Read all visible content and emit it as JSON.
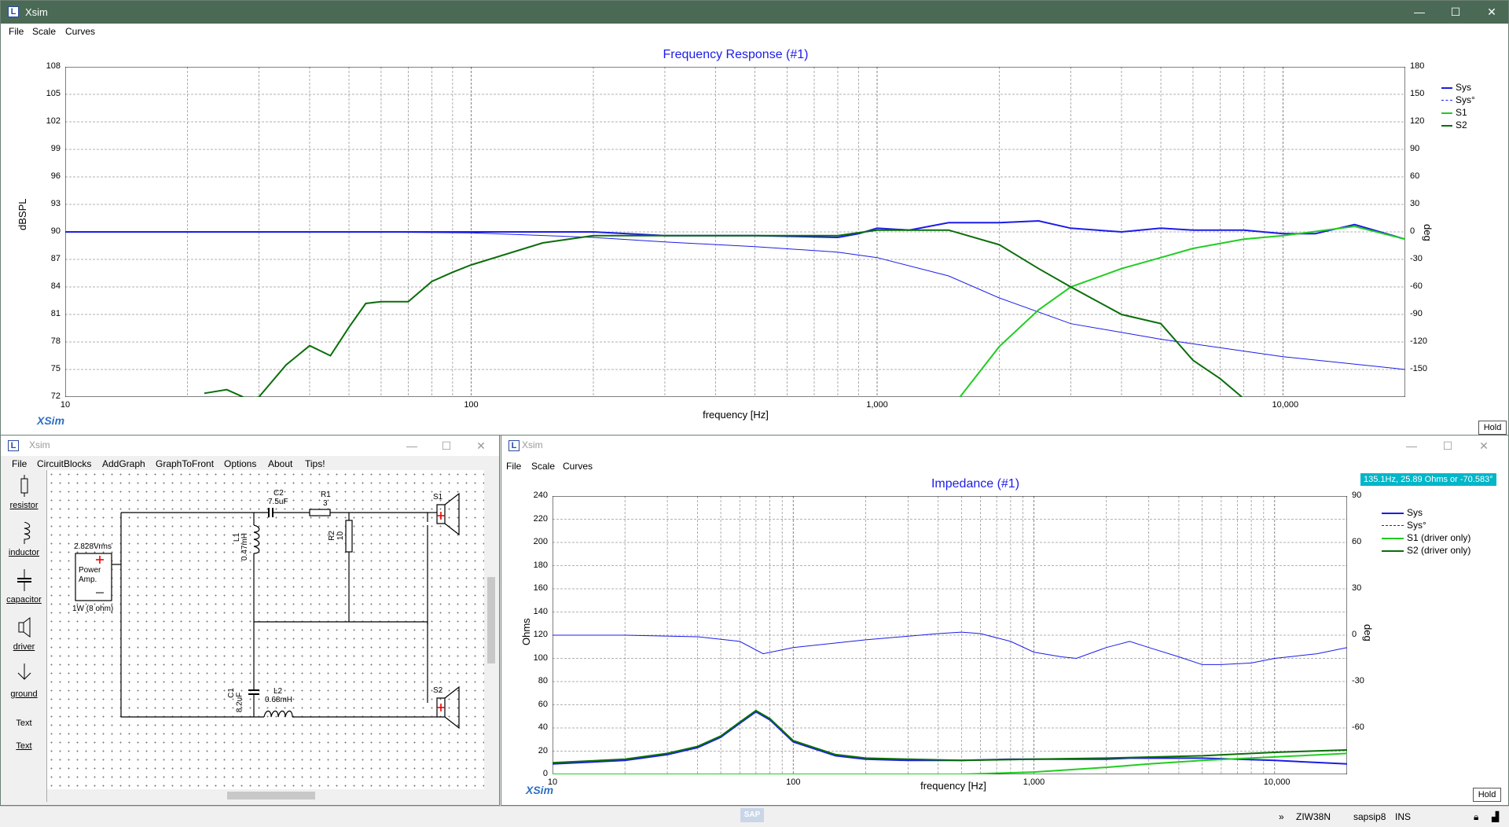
{
  "main_window": {
    "title": "Xsim",
    "controls": {
      "minimize": "—",
      "maximize": "☐",
      "close": "✕"
    },
    "menu": [
      "File",
      "Scale",
      "Curves"
    ]
  },
  "circuit_window": {
    "title": "Xsim",
    "menu": [
      "File",
      "CircuitBlocks",
      "AddGraph",
      "GraphToFront",
      "Options",
      "About",
      "Tips!"
    ],
    "palette": [
      "resistor",
      "inductor",
      "capacitor",
      "driver",
      "ground",
      "Text",
      "Text"
    ],
    "components": {
      "source_voltage": "2.828Vrms",
      "amp_label": "Power Amp.",
      "amp_rating": "1W (8 ohm)",
      "c2_name": "C2",
      "c2_value": "7.5uF",
      "r1_name": "R1",
      "r1_value": "3",
      "r2_name": "R2",
      "r2_value": "10",
      "l1_name": "L1",
      "l1_value": "0.47mH",
      "c1_name": "C1",
      "c1_value": "8.2uF",
      "l2_name": "L2",
      "l2_value": "0.68mH",
      "s1_name": "S1",
      "s2_name": "S2"
    }
  },
  "impedance_window": {
    "title": "Xsim",
    "menu": [
      "File",
      "Scale",
      "Curves"
    ],
    "cursor_readout": "135.1Hz, 25.89 Ohms or -70.583°"
  },
  "logo_text": "XSim",
  "hold_label": "Hold",
  "colors": {
    "sys": "#1c1ce8",
    "s1": "#22cc22",
    "s2": "#0a6e0a",
    "titlebar": "#4a6a56"
  },
  "statusbar": {
    "chevron": "»",
    "system": "ZIW38N",
    "user": "sapsip8",
    "mode": "INS"
  },
  "chart_data": [
    {
      "type": "line",
      "title": "Frequency Response (#1)",
      "xlabel": "frequency [Hz]",
      "ylabel": "dBSPL",
      "y2label": "deg",
      "xscale": "log",
      "xlim": [
        10,
        20000
      ],
      "ylim": [
        72,
        108
      ],
      "y2lim": [
        -180,
        180
      ],
      "x_ticks": [
        "10",
        "100",
        "1,000",
        "10,000"
      ],
      "y_ticks": [
        "108",
        "105",
        "102",
        "99",
        "96",
        "93",
        "90",
        "87",
        "84",
        "81",
        "78",
        "75",
        "72"
      ],
      "y2_ticks": [
        "180",
        "150",
        "120",
        "90",
        "60",
        "30",
        "0",
        "-30",
        "-60",
        "-90",
        "-120",
        "-150"
      ],
      "grid": true,
      "legend": "right",
      "legend_entries": [
        "Sys",
        "Sys°",
        "S1",
        "S2"
      ],
      "series": [
        {
          "name": "Sys",
          "x": [
            10,
            50,
            100,
            200,
            300,
            500,
            800,
            900,
            1000,
            1200,
            1500,
            2000,
            2500,
            3000,
            4000,
            5000,
            6000,
            8000,
            10000,
            12000,
            15000,
            20000
          ],
          "y": [
            90,
            90,
            90,
            90,
            89.6,
            89.6,
            89.4,
            89.8,
            90.4,
            90.2,
            91,
            91,
            91.2,
            90.4,
            90,
            90.4,
            90.2,
            90.2,
            89.8,
            89.8,
            90.8,
            89.2
          ]
        },
        {
          "name": "Sys°",
          "axis": "right",
          "x": [
            10,
            50,
            100,
            200,
            300,
            500,
            800,
            1000,
            1500,
            2000,
            3000,
            5000,
            10000,
            20000
          ],
          "y": [
            0,
            0,
            -1,
            -6,
            -11,
            -16,
            -22,
            -28,
            -48,
            -72,
            -100,
            -117,
            -136,
            -150
          ]
        },
        {
          "name": "S1",
          "x": [
            1600,
            2000,
            2500,
            3000,
            4000,
            5000,
            6000,
            8000,
            10000,
            15000,
            20000
          ],
          "y": [
            72,
            77.5,
            81.5,
            84,
            86,
            87.2,
            88.2,
            89.2,
            89.6,
            90.6,
            89.2
          ]
        },
        {
          "name": "S2",
          "x": [
            22,
            25,
            28,
            30,
            35,
            40,
            45,
            50,
            55,
            60,
            70,
            80,
            90,
            100,
            150,
            200,
            300,
            500,
            800,
            1000,
            1500,
            2000,
            2500,
            3000,
            4000,
            5000,
            6000,
            7000,
            8000
          ],
          "y": [
            72.4,
            72.8,
            71,
            72,
            75.5,
            77.6,
            76.5,
            79.6,
            82.2,
            82.4,
            82.4,
            84.6,
            85.6,
            86.4,
            88.8,
            89.6,
            89.6,
            89.6,
            89.6,
            90.2,
            90.2,
            88.6,
            86,
            84,
            81,
            80,
            76,
            74,
            70
          ]
        }
      ]
    },
    {
      "type": "line",
      "title": "Impedance (#1)",
      "xlabel": "frequency [Hz]",
      "ylabel": "Ohms",
      "y2label": "deg",
      "xscale": "log",
      "xlim": [
        10,
        20000
      ],
      "ylim": [
        0,
        240
      ],
      "y2lim": [
        -90,
        90
      ],
      "x_ticks": [
        "10",
        "100",
        "1,000",
        "10,000"
      ],
      "y_ticks": [
        "240",
        "220",
        "200",
        "180",
        "160",
        "140",
        "120",
        "100",
        "80",
        "60",
        "40",
        "20",
        "0"
      ],
      "y2_ticks": [
        "90",
        "60",
        "30",
        "0",
        "-30",
        "-60"
      ],
      "grid": true,
      "legend": "right",
      "legend_entries": [
        "Sys",
        "Sys°",
        "S1 (driver only)",
        "S2 (driver only)"
      ],
      "series": [
        {
          "name": "Sys",
          "x": [
            10,
            20,
            30,
            40,
            50,
            60,
            70,
            80,
            100,
            150,
            200,
            300,
            500,
            800,
            1000,
            1200,
            1500,
            2000,
            2500,
            3000,
            5000,
            10000,
            20000
          ],
          "y": [
            9,
            12,
            17,
            23,
            32,
            44,
            54,
            47,
            28,
            16,
            13,
            12,
            12,
            13,
            13,
            13,
            13,
            13,
            14,
            14,
            14,
            12,
            9
          ]
        },
        {
          "name": "Sys°",
          "axis": "right",
          "x": [
            10,
            20,
            40,
            60,
            75,
            100,
            200,
            400,
            500,
            600,
            800,
            1000,
            1300,
            1500,
            2000,
            2500,
            3000,
            4000,
            5000,
            6000,
            8000,
            10000,
            15000,
            20000
          ],
          "y": [
            0,
            0,
            -1,
            -4,
            -12,
            -8,
            -3,
            1,
            2,
            1,
            -4,
            -11,
            -14,
            -15,
            -8,
            -4,
            -8,
            -14,
            -19,
            -19,
            -18,
            -15,
            -12,
            -8
          ]
        },
        {
          "name": "S1 (driver only)",
          "x": [
            10,
            100,
            500,
            1000,
            2000,
            3000,
            5000,
            10000,
            20000
          ],
          "y": [
            0,
            0,
            0,
            2,
            6,
            9,
            12,
            15,
            18
          ]
        },
        {
          "name": "S2 (driver only)",
          "x": [
            10,
            20,
            30,
            40,
            50,
            60,
            70,
            80,
            100,
            150,
            200,
            300,
            500,
            1000,
            2000,
            5000,
            10000,
            20000
          ],
          "y": [
            10,
            13,
            18,
            24,
            33,
            45,
            55,
            48,
            29,
            17,
            14,
            13,
            12,
            13,
            14,
            16,
            19,
            21
          ]
        }
      ]
    }
  ]
}
